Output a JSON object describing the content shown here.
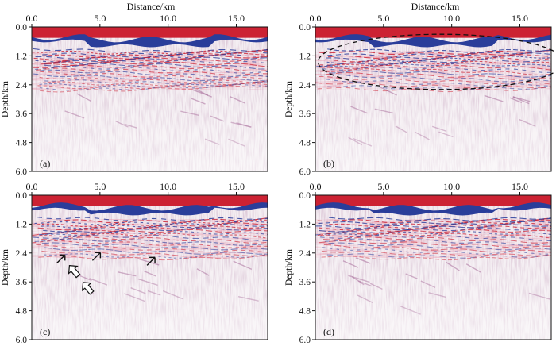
{
  "figure": {
    "top_axis_label": "Distance/km",
    "y_axis_label": "Depth/km",
    "x_ticks": [
      "0.0",
      "5.0",
      "10.0",
      "15.0"
    ],
    "x_tick_values": [
      0,
      5,
      10,
      15
    ],
    "y_ticks": [
      "0.0",
      "1.2",
      "2.4",
      "3.6",
      "4.8",
      "6.0"
    ],
    "y_tick_values": [
      0,
      1.2,
      2.4,
      3.6,
      4.8,
      6.0
    ],
    "x_range": [
      0,
      17.3
    ],
    "y_range": [
      0,
      6.0
    ],
    "colors": {
      "positive": "#cc2233",
      "negative": "#2a3d9a",
      "background": "#f4eef2",
      "frame": "#111111"
    },
    "panels": [
      {
        "label": "(a)",
        "annotation": "none"
      },
      {
        "label": "(b)",
        "annotation": "dashed-ellipse"
      },
      {
        "label": "(c)",
        "annotation": "arrows"
      },
      {
        "label": "(d)",
        "annotation": "none"
      }
    ]
  }
}
